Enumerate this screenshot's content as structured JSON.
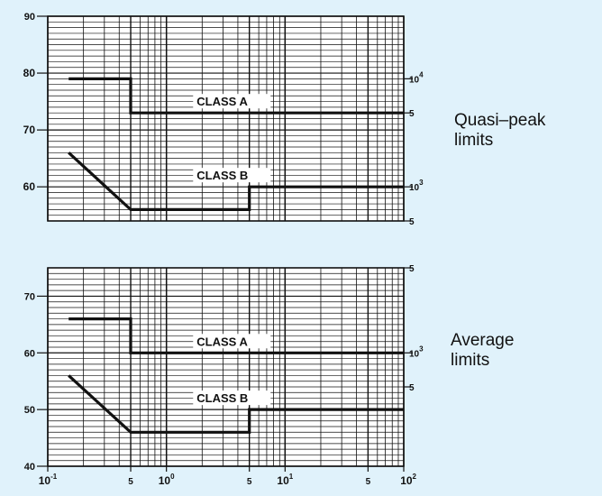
{
  "chart_data": [
    {
      "type": "line",
      "title": "",
      "side_label": [
        "Quasi–peak",
        "limits"
      ],
      "xlabel": "",
      "ylabel": "",
      "x_scale": "log",
      "xlim": [
        0.1,
        100
      ],
      "ylim": [
        54,
        90
      ],
      "y_ticks": [
        {
          "value": 90,
          "label": "90"
        },
        {
          "value": 80,
          "label": "80"
        },
        {
          "value": 70,
          "label": "70"
        },
        {
          "value": 60,
          "label": "60"
        }
      ],
      "right_ticks": [
        {
          "value": 79,
          "base": "10",
          "exp": "4"
        },
        {
          "value": 73,
          "base": "5",
          "exp": ""
        },
        {
          "value": 60,
          "base": "10",
          "exp": "3"
        },
        {
          "value": 54,
          "base": "5",
          "exp": ""
        }
      ],
      "series": [
        {
          "name": "CLASS A",
          "x": [
            0.15,
            0.5,
            0.5,
            100
          ],
          "y": [
            79,
            79,
            73,
            73
          ]
        },
        {
          "name": "CLASS B",
          "x": [
            0.15,
            0.5,
            5,
            5,
            100
          ],
          "y": [
            66,
            56,
            56,
            60,
            60
          ]
        }
      ]
    },
    {
      "type": "line",
      "title": "",
      "side_label": [
        "Average",
        "limits"
      ],
      "xlabel": "",
      "ylabel": "",
      "x_scale": "log",
      "xlim": [
        0.1,
        100
      ],
      "ylim": [
        40,
        75
      ],
      "y_ticks": [
        {
          "value": 70,
          "label": "70"
        },
        {
          "value": 60,
          "label": "60"
        },
        {
          "value": 50,
          "label": "50"
        },
        {
          "value": 40,
          "label": "40"
        }
      ],
      "right_ticks": [
        {
          "value": 75,
          "base": "5",
          "exp": ""
        },
        {
          "value": 60,
          "base": "10",
          "exp": "3"
        },
        {
          "value": 54,
          "base": "5",
          "exp": ""
        }
      ],
      "x_ticks": [
        {
          "value": 0.1,
          "base": "10",
          "exp": "-1"
        },
        {
          "value": 0.5,
          "base": "5",
          "exp": ""
        },
        {
          "value": 1,
          "base": "10",
          "exp": "0"
        },
        {
          "value": 5,
          "base": "5",
          "exp": ""
        },
        {
          "value": 10,
          "base": "10",
          "exp": "1"
        },
        {
          "value": 50,
          "base": "5",
          "exp": ""
        },
        {
          "value": 100,
          "base": "10",
          "exp": "2"
        }
      ],
      "series": [
        {
          "name": "CLASS A",
          "x": [
            0.15,
            0.5,
            0.5,
            100
          ],
          "y": [
            66,
            66,
            60,
            60
          ]
        },
        {
          "name": "CLASS B",
          "x": [
            0.15,
            0.5,
            5,
            5,
            100
          ],
          "y": [
            56,
            46,
            46,
            50,
            50
          ]
        }
      ]
    }
  ],
  "colors": {
    "background": "#e0f2fb",
    "plot": "#ffffff",
    "ink": "#111111"
  }
}
